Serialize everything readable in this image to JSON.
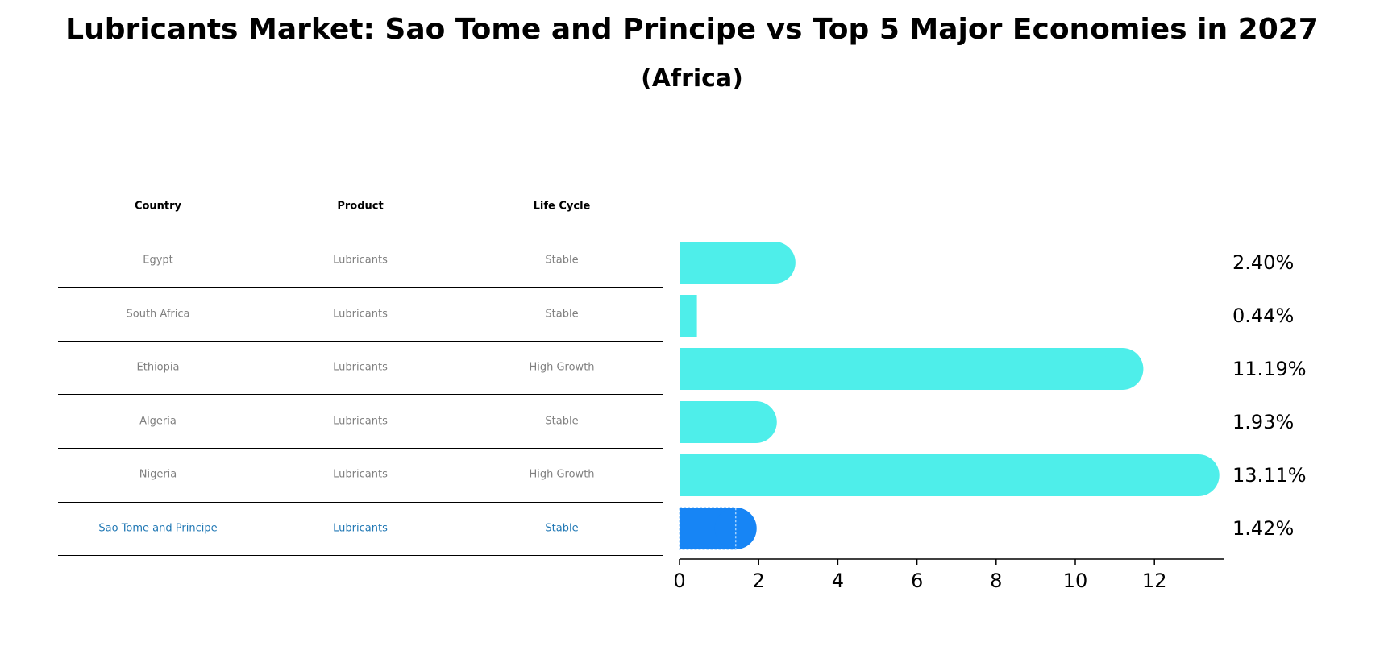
{
  "title": "Lubricants Market: Sao Tome and Principe vs Top 5 Major Economies in 2027",
  "subtitle": "(Africa)",
  "table": {
    "headers": [
      "Country",
      "Product",
      "Life Cycle"
    ],
    "rows": [
      [
        "Egypt",
        "Lubricants",
        "Stable"
      ],
      [
        "South Africa",
        "Lubricants",
        "Stable"
      ],
      [
        "Ethiopia",
        "Lubricants",
        "High Growth"
      ],
      [
        "Algeria",
        "Lubricants",
        "Stable"
      ],
      [
        "Nigeria",
        "Lubricants",
        "High Growth"
      ],
      [
        "Sao Tome and Principe",
        "Lubricants",
        "Stable"
      ]
    ],
    "highlight_row": 5,
    "highlight_color": "#1f77b4"
  },
  "chart_data": {
    "type": "bar",
    "orientation": "horizontal",
    "categories": [
      "Egypt",
      "South Africa",
      "Ethiopia",
      "Algeria",
      "Nigeria",
      "Sao Tome and Principe"
    ],
    "values": [
      2.4,
      0.44,
      11.19,
      1.93,
      13.11,
      1.42
    ],
    "value_labels": [
      "2.40%",
      "0.44%",
      "11.19%",
      "1.93%",
      "13.11%",
      "1.42%"
    ],
    "x_ticks": [
      "0",
      "2",
      "4",
      "6",
      "8",
      "10",
      "12"
    ],
    "x_tick_values": [
      0,
      2,
      4,
      6,
      8,
      10,
      12
    ],
    "xlim": [
      0,
      13.8
    ],
    "bar_color": "#4eeeea",
    "highlight_color": "#1785f5",
    "highlight_index": 5,
    "grid": false
  }
}
